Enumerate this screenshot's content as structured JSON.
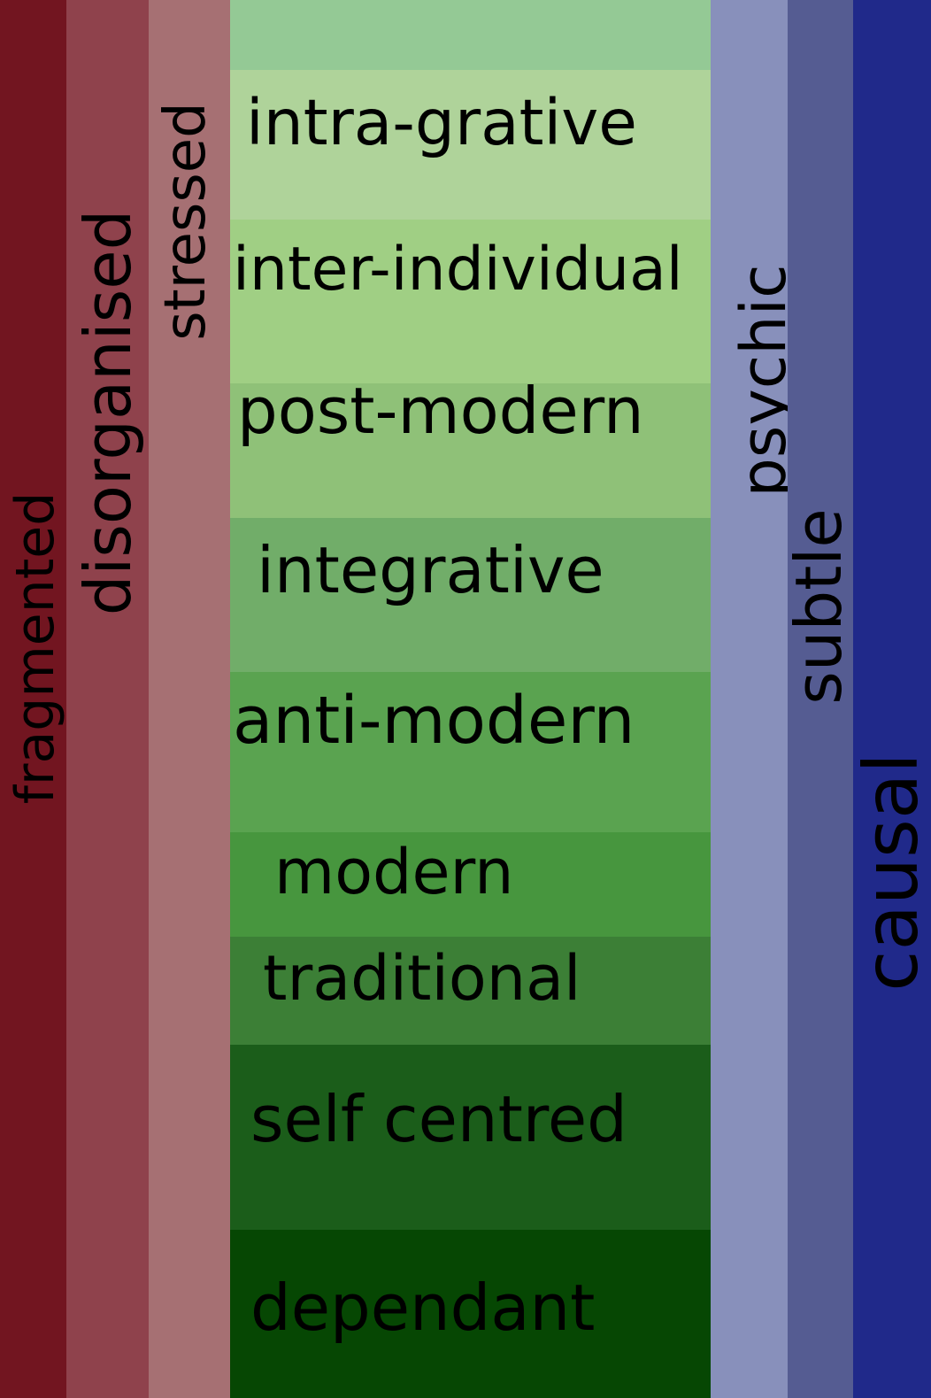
{
  "left_columns": [
    {
      "label": "fragmented",
      "color": "#721520"
    },
    {
      "label": "disorganised",
      "color": "#8f424c"
    },
    {
      "label": "stressed",
      "color": "#a67073"
    }
  ],
  "right_columns": [
    {
      "label": "psychic",
      "color": "#8890bb"
    },
    {
      "label": "subtle",
      "color": "#555c92"
    },
    {
      "label": "causal",
      "color": "#20298a"
    }
  ],
  "stages": [
    {
      "label": "",
      "color": "#94c995"
    },
    {
      "label": "intra-grative",
      "color": "#afd39a"
    },
    {
      "label": "inter-individual",
      "color": "#a0cf84"
    },
    {
      "label": "post-modern",
      "color": "#8fc178"
    },
    {
      "label": "integrative",
      "color": "#71ad69"
    },
    {
      "label": "anti-modern",
      "color": "#5aa350"
    },
    {
      "label": "modern",
      "color": "#47963e"
    },
    {
      "label": "traditional",
      "color": "#3c7f36"
    },
    {
      "label": "self centred",
      "color": "#1b5d1a"
    },
    {
      "label": "dependant",
      "color": "#064703"
    }
  ]
}
